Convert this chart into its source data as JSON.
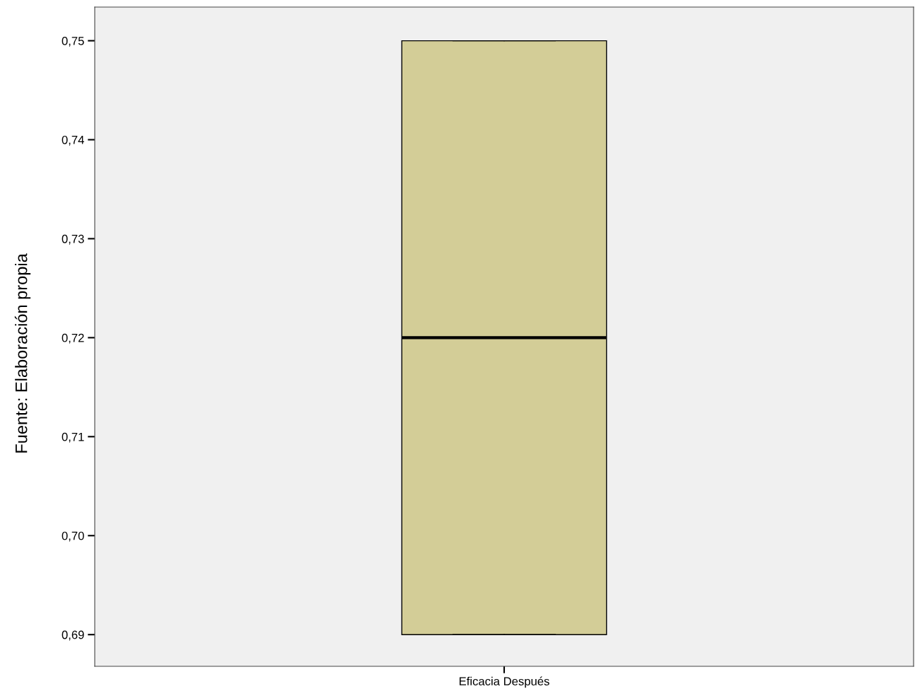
{
  "chart_data": {
    "type": "box",
    "categories": [
      "Eficacia Después"
    ],
    "boxes": [
      {
        "low": 0.69,
        "q1": 0.69,
        "median": 0.72,
        "q3": 0.75,
        "high": 0.75
      }
    ],
    "color": "#d3cd97",
    "ylim": [
      0.6868,
      0.7534
    ],
    "yticks": [
      {
        "value": 0.69,
        "label": "0,69"
      },
      {
        "value": 0.7,
        "label": "0,70"
      },
      {
        "value": 0.71,
        "label": "0,71"
      },
      {
        "value": 0.72,
        "label": "0,72"
      },
      {
        "value": 0.73,
        "label": "0,73"
      },
      {
        "value": 0.74,
        "label": "0,74"
      },
      {
        "value": 0.75,
        "label": "0,75"
      }
    ],
    "grid": false,
    "annotations": [
      "Fuente: Elaboración propia"
    ]
  }
}
